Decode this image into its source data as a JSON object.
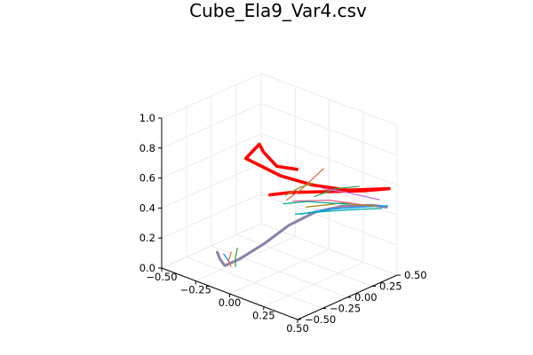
{
  "chart_data": {
    "type": "line",
    "projection": "3d",
    "title": "Cube_Ela9_Var4.csv",
    "xlabel": "",
    "ylabel": "",
    "zlabel": "",
    "xlim": [
      -0.5,
      0.5
    ],
    "ylim": [
      -0.5,
      0.5
    ],
    "zlim": [
      0,
      1
    ],
    "x_ticks": [
      "−0.50",
      "−0.25",
      "0.00",
      "0.25",
      "0.50"
    ],
    "y_ticks": [
      "−0.50",
      "−0.25",
      "0.00",
      "0.25",
      "0.50"
    ],
    "z_ticks": [
      "0.0",
      "0.2",
      "0.4",
      "0.6",
      "0.8",
      "1.0"
    ],
    "grid": true,
    "legend": "none",
    "colors": [
      "#009AFA",
      "#E26F46",
      "#3DA44D",
      "#C271D2",
      "#AC8D18",
      "#00A9AD",
      "#ED5E93",
      "#C68225",
      "#00A98D",
      "#8E971E"
    ],
    "series": [
      {
        "color": "#FF0000",
        "points": [
          [
            -0.12,
            0.34,
            0.54
          ],
          [
            -0.18,
            0.22,
            0.575
          ],
          [
            -0.3,
            0.25,
            0.62
          ],
          [
            -0.36,
            0.29,
            0.64
          ],
          [
            -0.32,
            0.1,
            0.615
          ],
          [
            -0.1,
            0.15,
            0.56
          ],
          [
            0.08,
            0.22,
            0.54
          ],
          [
            0.28,
            0.3,
            0.55
          ],
          [
            0.5,
            0.42,
            0.6
          ],
          [
            0.42,
            0.28,
            0.6
          ],
          [
            0.05,
            0.05,
            0.53
          ],
          [
            -0.04,
            -0.04,
            0.51
          ]
        ]
      },
      {
        "color": "#8C7FA8",
        "points": [
          [
            -0.42,
            -0.05,
            0.0
          ],
          [
            -0.35,
            -0.12,
            0.0
          ],
          [
            -0.27,
            -0.18,
            0.0
          ],
          [
            -0.19,
            -0.14,
            0.06
          ],
          [
            -0.07,
            -0.05,
            0.18
          ],
          [
            0.04,
            0.04,
            0.31
          ],
          [
            0.16,
            0.14,
            0.41
          ],
          [
            0.28,
            0.24,
            0.46
          ],
          [
            0.42,
            0.36,
            0.48
          ],
          [
            0.48,
            0.42,
            0.47
          ]
        ]
      },
      {
        "color": "#009AFA",
        "points": [
          [
            0.04,
            0.16,
            0.35
          ],
          [
            0.18,
            0.26,
            0.4
          ],
          [
            0.34,
            0.36,
            0.44
          ],
          [
            0.46,
            0.46,
            0.46
          ]
        ]
      },
      {
        "color": "#E26F46",
        "points": [
          [
            -0.02,
            0.1,
            0.44
          ],
          [
            0.02,
            0.2,
            0.5
          ],
          [
            0.06,
            0.36,
            0.6
          ]
        ]
      },
      {
        "color": "#3DA44D",
        "points": [
          [
            0.1,
            0.22,
            0.47
          ],
          [
            0.18,
            0.32,
            0.52
          ],
          [
            0.28,
            0.42,
            0.54
          ]
        ]
      },
      {
        "color": "#C271D2",
        "points": [
          [
            0.1,
            0.3,
            0.5
          ],
          [
            0.22,
            0.38,
            0.49
          ],
          [
            0.4,
            0.46,
            0.48
          ]
        ]
      },
      {
        "color": "#00A9AD",
        "points": [
          [
            0.06,
            0.08,
            0.38
          ],
          [
            0.22,
            0.2,
            0.42
          ],
          [
            0.36,
            0.3,
            0.45
          ],
          [
            0.46,
            0.4,
            0.46
          ]
        ]
      },
      {
        "color": "#ED5E93",
        "points": [
          [
            0.04,
            0.08,
            0.46
          ],
          [
            0.2,
            0.22,
            0.48
          ],
          [
            0.4,
            0.36,
            0.47
          ]
        ]
      },
      {
        "color": "#AC8D18",
        "points": [
          [
            0.08,
            0.16,
            0.41
          ],
          [
            0.24,
            0.3,
            0.45
          ],
          [
            0.42,
            0.4,
            0.46
          ]
        ]
      },
      {
        "color": "#8E971E",
        "points": [
          [
            -0.04,
            0.12,
            0.46
          ],
          [
            0.0,
            0.2,
            0.5
          ],
          [
            0.04,
            0.28,
            0.52
          ]
        ]
      },
      {
        "color": "#00A98D",
        "points": [
          [
            0.0,
            0.04,
            0.44
          ],
          [
            0.1,
            0.14,
            0.46
          ],
          [
            0.3,
            0.28,
            0.47
          ]
        ]
      },
      {
        "color": "#009AFA",
        "points": [
          [
            -0.38,
            -0.04,
            0.0
          ],
          [
            -0.33,
            -0.08,
            0.0
          ],
          [
            -0.28,
            -0.12,
            0.0
          ]
        ]
      },
      {
        "color": "#E26F46",
        "points": [
          [
            -0.34,
            -0.02,
            0.02
          ],
          [
            -0.3,
            -0.1,
            0.0
          ],
          [
            -0.24,
            -0.16,
            0.0
          ]
        ]
      },
      {
        "color": "#3DA44D",
        "points": [
          [
            -0.31,
            0.0,
            0.05
          ],
          [
            -0.28,
            -0.06,
            0.01
          ],
          [
            -0.22,
            -0.14,
            0.0
          ]
        ]
      }
    ]
  }
}
